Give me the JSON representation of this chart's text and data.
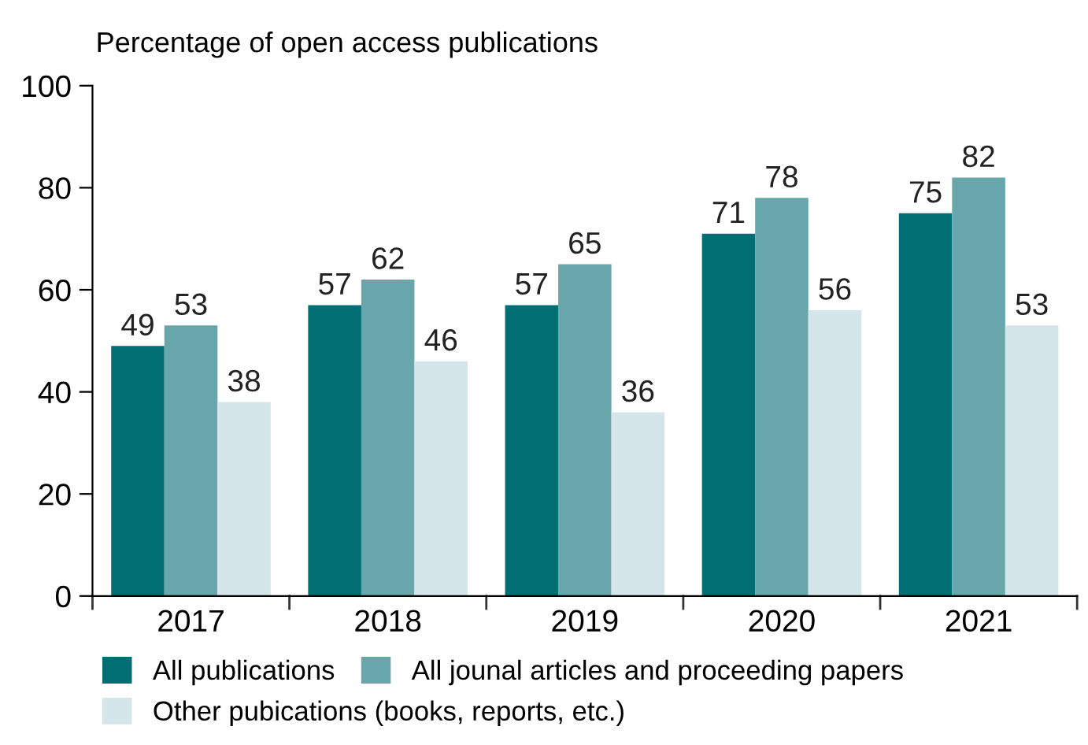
{
  "chart_data": {
    "type": "bar",
    "ylabel": "Percentage of open access publications",
    "categories": [
      "2017",
      "2018",
      "2019",
      "2020",
      "2021"
    ],
    "series": [
      {
        "name": "All publications",
        "color": "#006e72",
        "values": [
          49,
          57,
          57,
          71,
          75
        ]
      },
      {
        "name": "All jounal articles and proceeding papers",
        "color": "#67a6aa",
        "values": [
          53,
          62,
          65,
          78,
          82
        ]
      },
      {
        "name": "Other pubications (books, reports, etc.)",
        "color": "#d4e6e9",
        "values": [
          38,
          46,
          36,
          56,
          53
        ]
      }
    ],
    "ylim": [
      0,
      100
    ],
    "yticks": [
      0,
      20,
      40,
      60,
      80,
      100
    ],
    "grid": false,
    "legend": "bottom",
    "data_labels": true
  }
}
